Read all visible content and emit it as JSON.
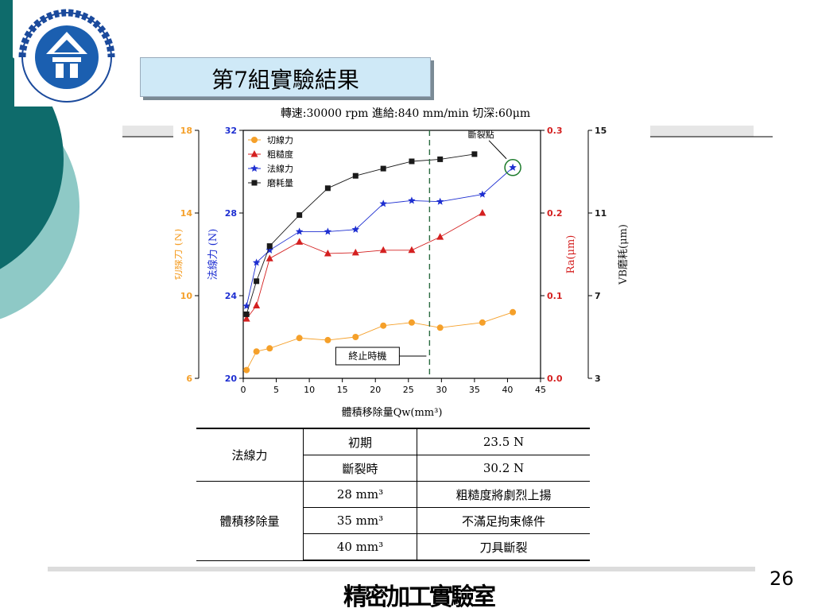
{
  "slide": {
    "title": "第7組實驗結果",
    "page_number": "26",
    "lab_name": "精密加工實驗室",
    "logo": {
      "ring_text_top": "國立高雄第一科技大學",
      "ring_text_bottom": "National Kaohsiung First University of Science and Technology"
    }
  },
  "colors": {
    "teal_dark": "#0e6b6b",
    "teal_light": "#8ec9c6",
    "title_bg": "#cfe9f7",
    "orange": "#f5a02a",
    "red": "#d42020",
    "blue": "#1e2fd1",
    "black": "#1a1a1a",
    "dashed_line": "#2a6b40"
  },
  "chart_data": {
    "type": "line",
    "title": "轉速:30000 rpm   進給:840 mm/min   切深:60μm",
    "xlabel": "體積移除量Qw(mm³)",
    "xlim": [
      0,
      45
    ],
    "x_ticks": [
      "0",
      "5",
      "10",
      "15",
      "20",
      "25",
      "30",
      "35",
      "40",
      "45"
    ],
    "axes": [
      {
        "id": "cutting",
        "label": "切線力 (N)",
        "range": [
          6,
          18
        ],
        "ticks": [
          "6",
          "10",
          "14",
          "18"
        ],
        "color": "#f5a02a"
      },
      {
        "id": "normal",
        "label": "法線力 (N)",
        "range": [
          20,
          32
        ],
        "ticks": [
          "20",
          "24",
          "28",
          "32"
        ],
        "color": "#1e2fd1"
      },
      {
        "id": "ra",
        "label": "Ra(μm)",
        "range": [
          0.0,
          0.3
        ],
        "ticks": [
          "0.0",
          "0.1",
          "0.2",
          "0.3"
        ],
        "color": "#d42020"
      },
      {
        "id": "vb",
        "label": "VB磨耗(μm)",
        "range": [
          3,
          15
        ],
        "ticks": [
          "3",
          "7",
          "11",
          "15"
        ],
        "color": "#1a1a1a"
      }
    ],
    "series": [
      {
        "name": "切線力",
        "axis": "cutting",
        "marker": "circle",
        "color": "#f5a02a",
        "x": [
          0.5,
          2,
          4,
          8.5,
          12.8,
          17,
          21.2,
          25.5,
          29.8,
          36.2,
          40.8
        ],
        "y": [
          6.4,
          7.3,
          7.45,
          7.95,
          7.85,
          8.0,
          8.55,
          8.7,
          8.45,
          8.7,
          9.2
        ]
      },
      {
        "name": "粗糙度",
        "axis": "ra",
        "marker": "triangle",
        "color": "#d42020",
        "x": [
          0.5,
          2,
          4,
          8.5,
          12.8,
          17,
          21.2,
          25.5,
          29.8,
          36.2
        ],
        "y": [
          0.072,
          0.088,
          0.145,
          0.165,
          0.151,
          0.152,
          0.155,
          0.155,
          0.171,
          0.2
        ]
      },
      {
        "name": "法線力",
        "axis": "normal",
        "marker": "star",
        "color": "#1e2fd1",
        "x": [
          0.5,
          2,
          4,
          8.5,
          12.8,
          17,
          21.2,
          25.5,
          29.8,
          36.2,
          40.8
        ],
        "y": [
          23.5,
          25.6,
          26.2,
          27.1,
          27.1,
          27.2,
          28.45,
          28.6,
          28.55,
          28.9,
          30.2
        ]
      },
      {
        "name": "磨耗量",
        "axis": "vb",
        "marker": "square",
        "color": "#1a1a1a",
        "x": [
          0.5,
          2,
          4,
          8.5,
          12.8,
          17,
          21.2,
          25.5,
          29.8,
          35
        ],
        "y": [
          6.1,
          7.7,
          9.4,
          10.9,
          12.2,
          12.8,
          13.15,
          13.5,
          13.6,
          13.85
        ]
      }
    ],
    "annotations": [
      {
        "text": "斷裂點",
        "x": 40.8,
        "axis": "normal",
        "y": 30.2
      },
      {
        "text": "終止時機",
        "x": 28.2
      }
    ],
    "legend": "top-left"
  },
  "table": {
    "rows": [
      {
        "label": "法線力",
        "items": [
          {
            "col2": "初期",
            "col3": "23.5 N"
          },
          {
            "col2": "斷裂時",
            "col3": "30.2 N"
          }
        ]
      },
      {
        "label": "體積移除量",
        "items": [
          {
            "col2": "28 mm³",
            "col3": "粗糙度將劇烈上揚"
          },
          {
            "col2": "35 mm³",
            "col3": "不滿足拘束條件"
          },
          {
            "col2": "40 mm³",
            "col3": "刀具斷裂"
          }
        ]
      }
    ]
  }
}
